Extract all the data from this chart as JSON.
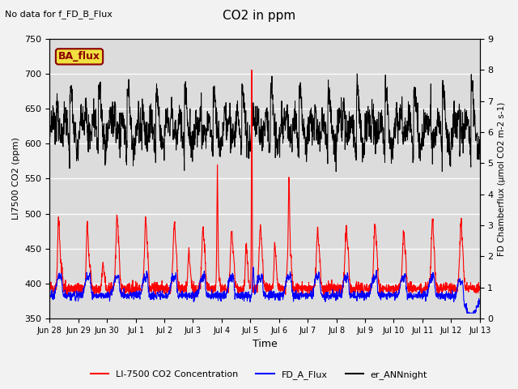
{
  "title": "CO2 in ppm",
  "ylabel_left": "LI7500 CO2 (ppm)",
  "ylabel_right": "FD Chamberflux (μmol CO2 m-2 s-1)",
  "xlabel": "Time",
  "ylim_left": [
    350,
    750
  ],
  "ylim_right": [
    0.0,
    9.0
  ],
  "annotation_text": "No data for f_FD_B_Flux",
  "box_text": "BA_flux",
  "legend_labels": [
    "LI-7500 CO2 Concentration",
    "FD_A_Flux",
    "er_ANNnight"
  ],
  "bg_color": "#dcdcdc",
  "xtick_labels": [
    "Jun 28",
    "Jun 29",
    "Jun 30",
    "Jul 1",
    "Jul 2",
    "Jul 3",
    "Jul 4",
    "Jul 5",
    "Jul 6",
    "Jul 7",
    "Jul 8",
    "Jul 9",
    "Jul 10",
    "Jul 11",
    "Jul 12",
    "Jul 13"
  ],
  "xtick_positions": [
    0,
    1,
    2,
    3,
    4,
    5,
    6,
    7,
    8,
    9,
    10,
    11,
    12,
    13,
    14,
    15
  ],
  "yticks_left": [
    350,
    400,
    450,
    500,
    550,
    600,
    650,
    700,
    750
  ],
  "yticks_right": [
    0.0,
    1.0,
    2.0,
    3.0,
    4.0,
    5.0,
    6.0,
    7.0,
    8.0,
    9.0
  ]
}
